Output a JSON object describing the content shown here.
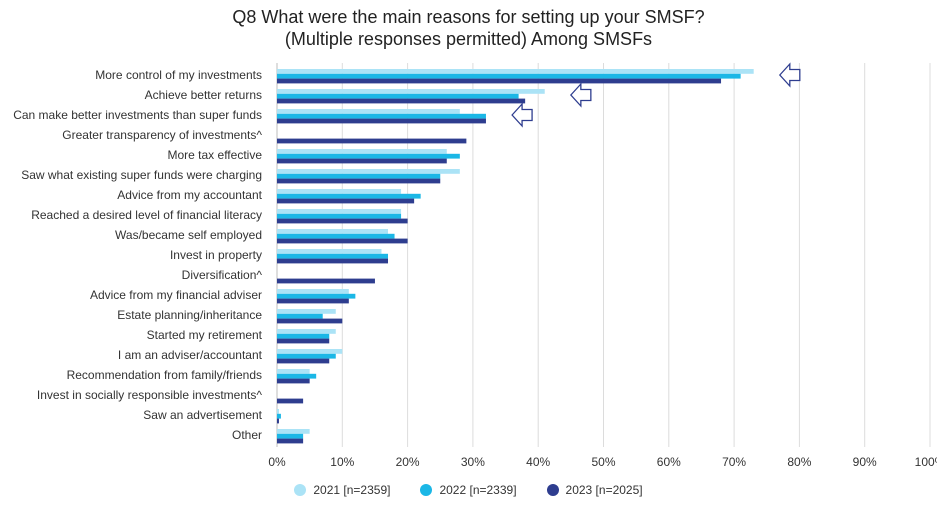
{
  "chart_data": {
    "type": "bar",
    "orientation": "horizontal",
    "title": "Q8 What were the main reasons for setting up your SMSF?",
    "subtitle": "(Multiple responses permitted) Among SMSFs",
    "categories": [
      "More control of my investments",
      "Achieve better returns",
      "Can make better investments than super funds",
      "Greater transparency of investments^",
      "More tax effective",
      "Saw what existing super funds were charging",
      "Advice from my accountant",
      "Reached a desired level of financial literacy",
      "Was/became self employed",
      "Invest in property",
      "Diversification^",
      "Advice from my financial adviser",
      "Estate planning/inheritance",
      "Started my retirement",
      "I am an adviser/accountant",
      "Recommendation from family/friends",
      "Invest in socially responsible investments^",
      "Saw an advertisement",
      "Other"
    ],
    "series": [
      {
        "name": "2021 [n=2359]",
        "color": "#abe3f6",
        "values": [
          73,
          41,
          28,
          null,
          26,
          28,
          19,
          19,
          17,
          16,
          null,
          11,
          9,
          9,
          10,
          5,
          null,
          0.3,
          5
        ]
      },
      {
        "name": "2022 [n=2339]",
        "color": "#1bb7e6",
        "values": [
          71,
          37,
          32,
          null,
          28,
          25,
          22,
          19,
          18,
          17,
          null,
          12,
          7,
          8,
          9,
          6,
          null,
          0.6,
          4
        ]
      },
      {
        "name": "2023 [n=2025]",
        "color": "#2e3d8f",
        "values": [
          68,
          38,
          32,
          29,
          26,
          25,
          21,
          20,
          20,
          17,
          15,
          11,
          10,
          8,
          8,
          5,
          4,
          0.3,
          4
        ]
      }
    ],
    "xlim": [
      0,
      100
    ],
    "x_ticks": [
      "0%",
      "10%",
      "20%",
      "30%",
      "40%",
      "50%",
      "60%",
      "70%",
      "80%",
      "90%",
      "100%"
    ],
    "grid": true,
    "legend_position": "bottom",
    "annotations": [
      {
        "type": "arrow-left",
        "category": "More control of my investments",
        "at_value": 77
      },
      {
        "type": "arrow-left",
        "category": "Achieve better returns",
        "at_value": 45
      },
      {
        "type": "arrow-left",
        "category": "Can make better investments than super funds",
        "at_value": 36
      }
    ]
  }
}
